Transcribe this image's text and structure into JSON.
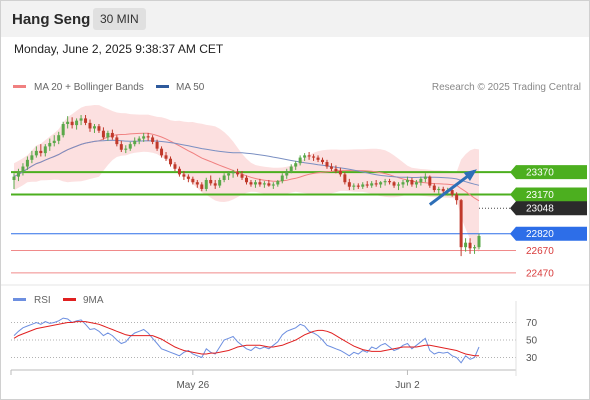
{
  "header": {
    "title": "Hang Seng",
    "timeframe": "30 MIN"
  },
  "datetime": "Monday, June 2, 2025 9:38:37 AM CET",
  "legend": [
    {
      "label": "MA 20 + Bollinger Bands",
      "color": "#f08080"
    },
    {
      "label": "MA 50",
      "color": "#2e5a9c"
    }
  ],
  "copyright": "Research © 2025 Trading Central",
  "colors": {
    "up": "#5aa84a",
    "down": "#c0392b",
    "band": "#fbdada",
    "ma20": "#f08080",
    "ma50": "#7a8fc2",
    "rsi": "#6d8fe0",
    "rsi_ma": "#e02020",
    "green_level": "#4caf1f",
    "blue_level": "#2d6ee8",
    "red_level": "#f08a8a"
  },
  "chart_data": [
    {
      "type": "candlestick",
      "price_range": [
        22380,
        24050
      ],
      "levels": [
        {
          "value": 23370,
          "label": "23370",
          "kind": "resistance"
        },
        {
          "value": 23170,
          "label": "23170",
          "kind": "resistance"
        },
        {
          "value": 23048,
          "label": "23048",
          "kind": "last"
        },
        {
          "value": 22820,
          "label": "22820",
          "kind": "pivot"
        },
        {
          "value": 22670,
          "label": "22670",
          "kind": "support"
        },
        {
          "value": 22470,
          "label": "22470",
          "kind": "support"
        }
      ],
      "x_tick_labels": [
        {
          "label": "May 26",
          "index": 40
        },
        {
          "label": "Jun 2",
          "index": 88
        }
      ],
      "arrow": {
        "direction": "up",
        "from_index": 93,
        "from_price": 23080,
        "to_index": 103,
        "to_price": 23380
      },
      "candles": [
        [
          23300,
          23360,
          23220,
          23330
        ],
        [
          23330,
          23400,
          23290,
          23370
        ],
        [
          23370,
          23450,
          23340,
          23420
        ],
        [
          23420,
          23510,
          23390,
          23480
        ],
        [
          23480,
          23560,
          23450,
          23520
        ],
        [
          23520,
          23600,
          23500,
          23560
        ],
        [
          23560,
          23620,
          23510,
          23540
        ],
        [
          23540,
          23620,
          23510,
          23600
        ],
        [
          23600,
          23670,
          23560,
          23630
        ],
        [
          23630,
          23700,
          23600,
          23650
        ],
        [
          23650,
          23730,
          23620,
          23700
        ],
        [
          23700,
          23820,
          23680,
          23800
        ],
        [
          23800,
          23870,
          23760,
          23820
        ],
        [
          23820,
          23860,
          23760,
          23790
        ],
        [
          23790,
          23850,
          23750,
          23830
        ],
        [
          23830,
          23880,
          23790,
          23850
        ],
        [
          23850,
          23880,
          23790,
          23810
        ],
        [
          23810,
          23840,
          23730,
          23760
        ],
        [
          23760,
          23800,
          23720,
          23780
        ],
        [
          23780,
          23800,
          23720,
          23740
        ],
        [
          23740,
          23770,
          23660,
          23680
        ],
        [
          23680,
          23740,
          23650,
          23720
        ],
        [
          23720,
          23750,
          23660,
          23680
        ],
        [
          23680,
          23700,
          23600,
          23620
        ],
        [
          23620,
          23650,
          23550,
          23570
        ],
        [
          23570,
          23610,
          23540,
          23580
        ],
        [
          23580,
          23640,
          23560,
          23620
        ],
        [
          23620,
          23680,
          23600,
          23650
        ],
        [
          23650,
          23690,
          23620,
          23670
        ],
        [
          23670,
          23720,
          23640,
          23690
        ],
        [
          23690,
          23720,
          23650,
          23680
        ],
        [
          23680,
          23700,
          23620,
          23640
        ],
        [
          23640,
          23660,
          23560,
          23580
        ],
        [
          23580,
          23600,
          23500,
          23520
        ],
        [
          23520,
          23550,
          23470,
          23490
        ],
        [
          23490,
          23510,
          23420,
          23440
        ],
        [
          23440,
          23460,
          23380,
          23400
        ],
        [
          23400,
          23420,
          23330,
          23350
        ],
        [
          23350,
          23380,
          23300,
          23330
        ],
        [
          23330,
          23350,
          23280,
          23310
        ],
        [
          23310,
          23330,
          23260,
          23280
        ],
        [
          23280,
          23300,
          23230,
          23260
        ],
        [
          23260,
          23280,
          23200,
          23220
        ],
        [
          23220,
          23320,
          23200,
          23300
        ],
        [
          23300,
          23340,
          23250,
          23270
        ],
        [
          23270,
          23300,
          23220,
          23250
        ],
        [
          23250,
          23320,
          23230,
          23300
        ],
        [
          23300,
          23360,
          23280,
          23340
        ],
        [
          23340,
          23380,
          23300,
          23360
        ],
        [
          23360,
          23390,
          23320,
          23370
        ],
        [
          23370,
          23400,
          23330,
          23350
        ],
        [
          23350,
          23380,
          23300,
          23320
        ],
        [
          23320,
          23340,
          23260,
          23280
        ],
        [
          23280,
          23300,
          23240,
          23260
        ],
        [
          23260,
          23300,
          23230,
          23280
        ],
        [
          23280,
          23310,
          23240,
          23260
        ],
        [
          23260,
          23290,
          23230,
          23270
        ],
        [
          23270,
          23300,
          23240,
          23250
        ],
        [
          23250,
          23280,
          23220,
          23260
        ],
        [
          23260,
          23300,
          23240,
          23290
        ],
        [
          23290,
          23360,
          23270,
          23340
        ],
        [
          23340,
          23400,
          23310,
          23380
        ],
        [
          23380,
          23440,
          23360,
          23420
        ],
        [
          23420,
          23470,
          23390,
          23450
        ],
        [
          23450,
          23520,
          23430,
          23500
        ],
        [
          23500,
          23540,
          23470,
          23520
        ],
        [
          23520,
          23550,
          23480,
          23510
        ],
        [
          23510,
          23530,
          23470,
          23500
        ],
        [
          23500,
          23520,
          23460,
          23480
        ],
        [
          23480,
          23500,
          23440,
          23460
        ],
        [
          23460,
          23480,
          23400,
          23420
        ],
        [
          23420,
          23450,
          23380,
          23400
        ],
        [
          23400,
          23430,
          23360,
          23380
        ],
        [
          23380,
          23410,
          23330,
          23350
        ],
        [
          23350,
          23370,
          23260,
          23280
        ],
        [
          23280,
          23310,
          23210,
          23240
        ],
        [
          23240,
          23270,
          23210,
          23250
        ],
        [
          23250,
          23270,
          23220,
          23240
        ],
        [
          23240,
          23280,
          23220,
          23260
        ],
        [
          23260,
          23290,
          23230,
          23250
        ],
        [
          23250,
          23290,
          23230,
          23270
        ],
        [
          23270,
          23300,
          23240,
          23260
        ],
        [
          23260,
          23290,
          23230,
          23280
        ],
        [
          23280,
          23310,
          23250,
          23290
        ],
        [
          23290,
          23310,
          23260,
          23280
        ],
        [
          23280,
          23290,
          23230,
          23250
        ],
        [
          23250,
          23280,
          23210,
          23260
        ],
        [
          23260,
          23300,
          23230,
          23280
        ],
        [
          23280,
          23330,
          23250,
          23300
        ],
        [
          23300,
          23320,
          23240,
          23260
        ],
        [
          23260,
          23300,
          23230,
          23280
        ],
        [
          23280,
          23330,
          23250,
          23310
        ],
        [
          23310,
          23360,
          23280,
          23330
        ],
        [
          23330,
          23340,
          23230,
          23250
        ],
        [
          23250,
          23270,
          23190,
          23210
        ],
        [
          23210,
          23240,
          23180,
          23220
        ],
        [
          23220,
          23240,
          23170,
          23200
        ],
        [
          23200,
          23230,
          23160,
          23210
        ],
        [
          23210,
          23230,
          23150,
          23170
        ],
        [
          23170,
          23190,
          23080,
          23120
        ],
        [
          23120,
          23130,
          22620,
          22700
        ],
        [
          22700,
          22780,
          22660,
          22740
        ],
        [
          22740,
          22780,
          22640,
          22690
        ],
        [
          22690,
          22720,
          22640,
          22700
        ],
        [
          22700,
          22820,
          22680,
          22800
        ]
      ]
    },
    {
      "type": "line",
      "name": "RSI",
      "y_ticks": [
        70,
        50,
        30
      ],
      "ylim": [
        18,
        82
      ],
      "series": [
        {
          "name": "RSI",
          "values": [
            55,
            60,
            64,
            66,
            68,
            70,
            68,
            71,
            69,
            70,
            72,
            75,
            74,
            70,
            72,
            73,
            68,
            62,
            63,
            60,
            55,
            58,
            55,
            50,
            46,
            48,
            54,
            58,
            60,
            62,
            58,
            52,
            46,
            40,
            38,
            36,
            34,
            32,
            36,
            38,
            34,
            32,
            30,
            40,
            36,
            34,
            42,
            50,
            52,
            54,
            48,
            44,
            40,
            38,
            42,
            40,
            42,
            40,
            44,
            48,
            56,
            60,
            62,
            64,
            68,
            66,
            60,
            58,
            55,
            50,
            44,
            42,
            40,
            38,
            35,
            32,
            36,
            34,
            38,
            36,
            42,
            40,
            44,
            46,
            42,
            38,
            40,
            44,
            46,
            40,
            44,
            48,
            52,
            38,
            34,
            36,
            35,
            36,
            32,
            30,
            24,
            32,
            28,
            30,
            42
          ]
        },
        {
          "name": "9MA",
          "values": [
            52,
            55,
            57,
            59,
            61,
            63,
            64,
            65,
            66,
            67,
            68,
            69,
            70,
            70,
            71,
            71,
            71,
            70,
            69,
            68,
            66,
            64,
            62,
            60,
            58,
            56,
            55,
            55,
            55,
            55,
            55,
            55,
            53,
            51,
            48,
            45,
            42,
            40,
            38,
            37,
            36,
            35,
            34,
            34,
            35,
            35,
            36,
            37,
            38,
            40,
            42,
            43,
            44,
            44,
            44,
            44,
            43,
            42,
            42,
            43,
            44,
            46,
            48,
            50,
            53,
            56,
            58,
            60,
            61,
            61,
            60,
            58,
            55,
            52,
            49,
            46,
            43,
            41,
            39,
            38,
            37,
            37,
            37,
            38,
            39,
            40,
            41,
            42,
            42,
            42,
            42,
            43,
            44,
            44,
            43,
            42,
            41,
            40,
            39,
            38,
            36,
            34,
            33,
            32,
            32
          ]
        }
      ]
    }
  ]
}
